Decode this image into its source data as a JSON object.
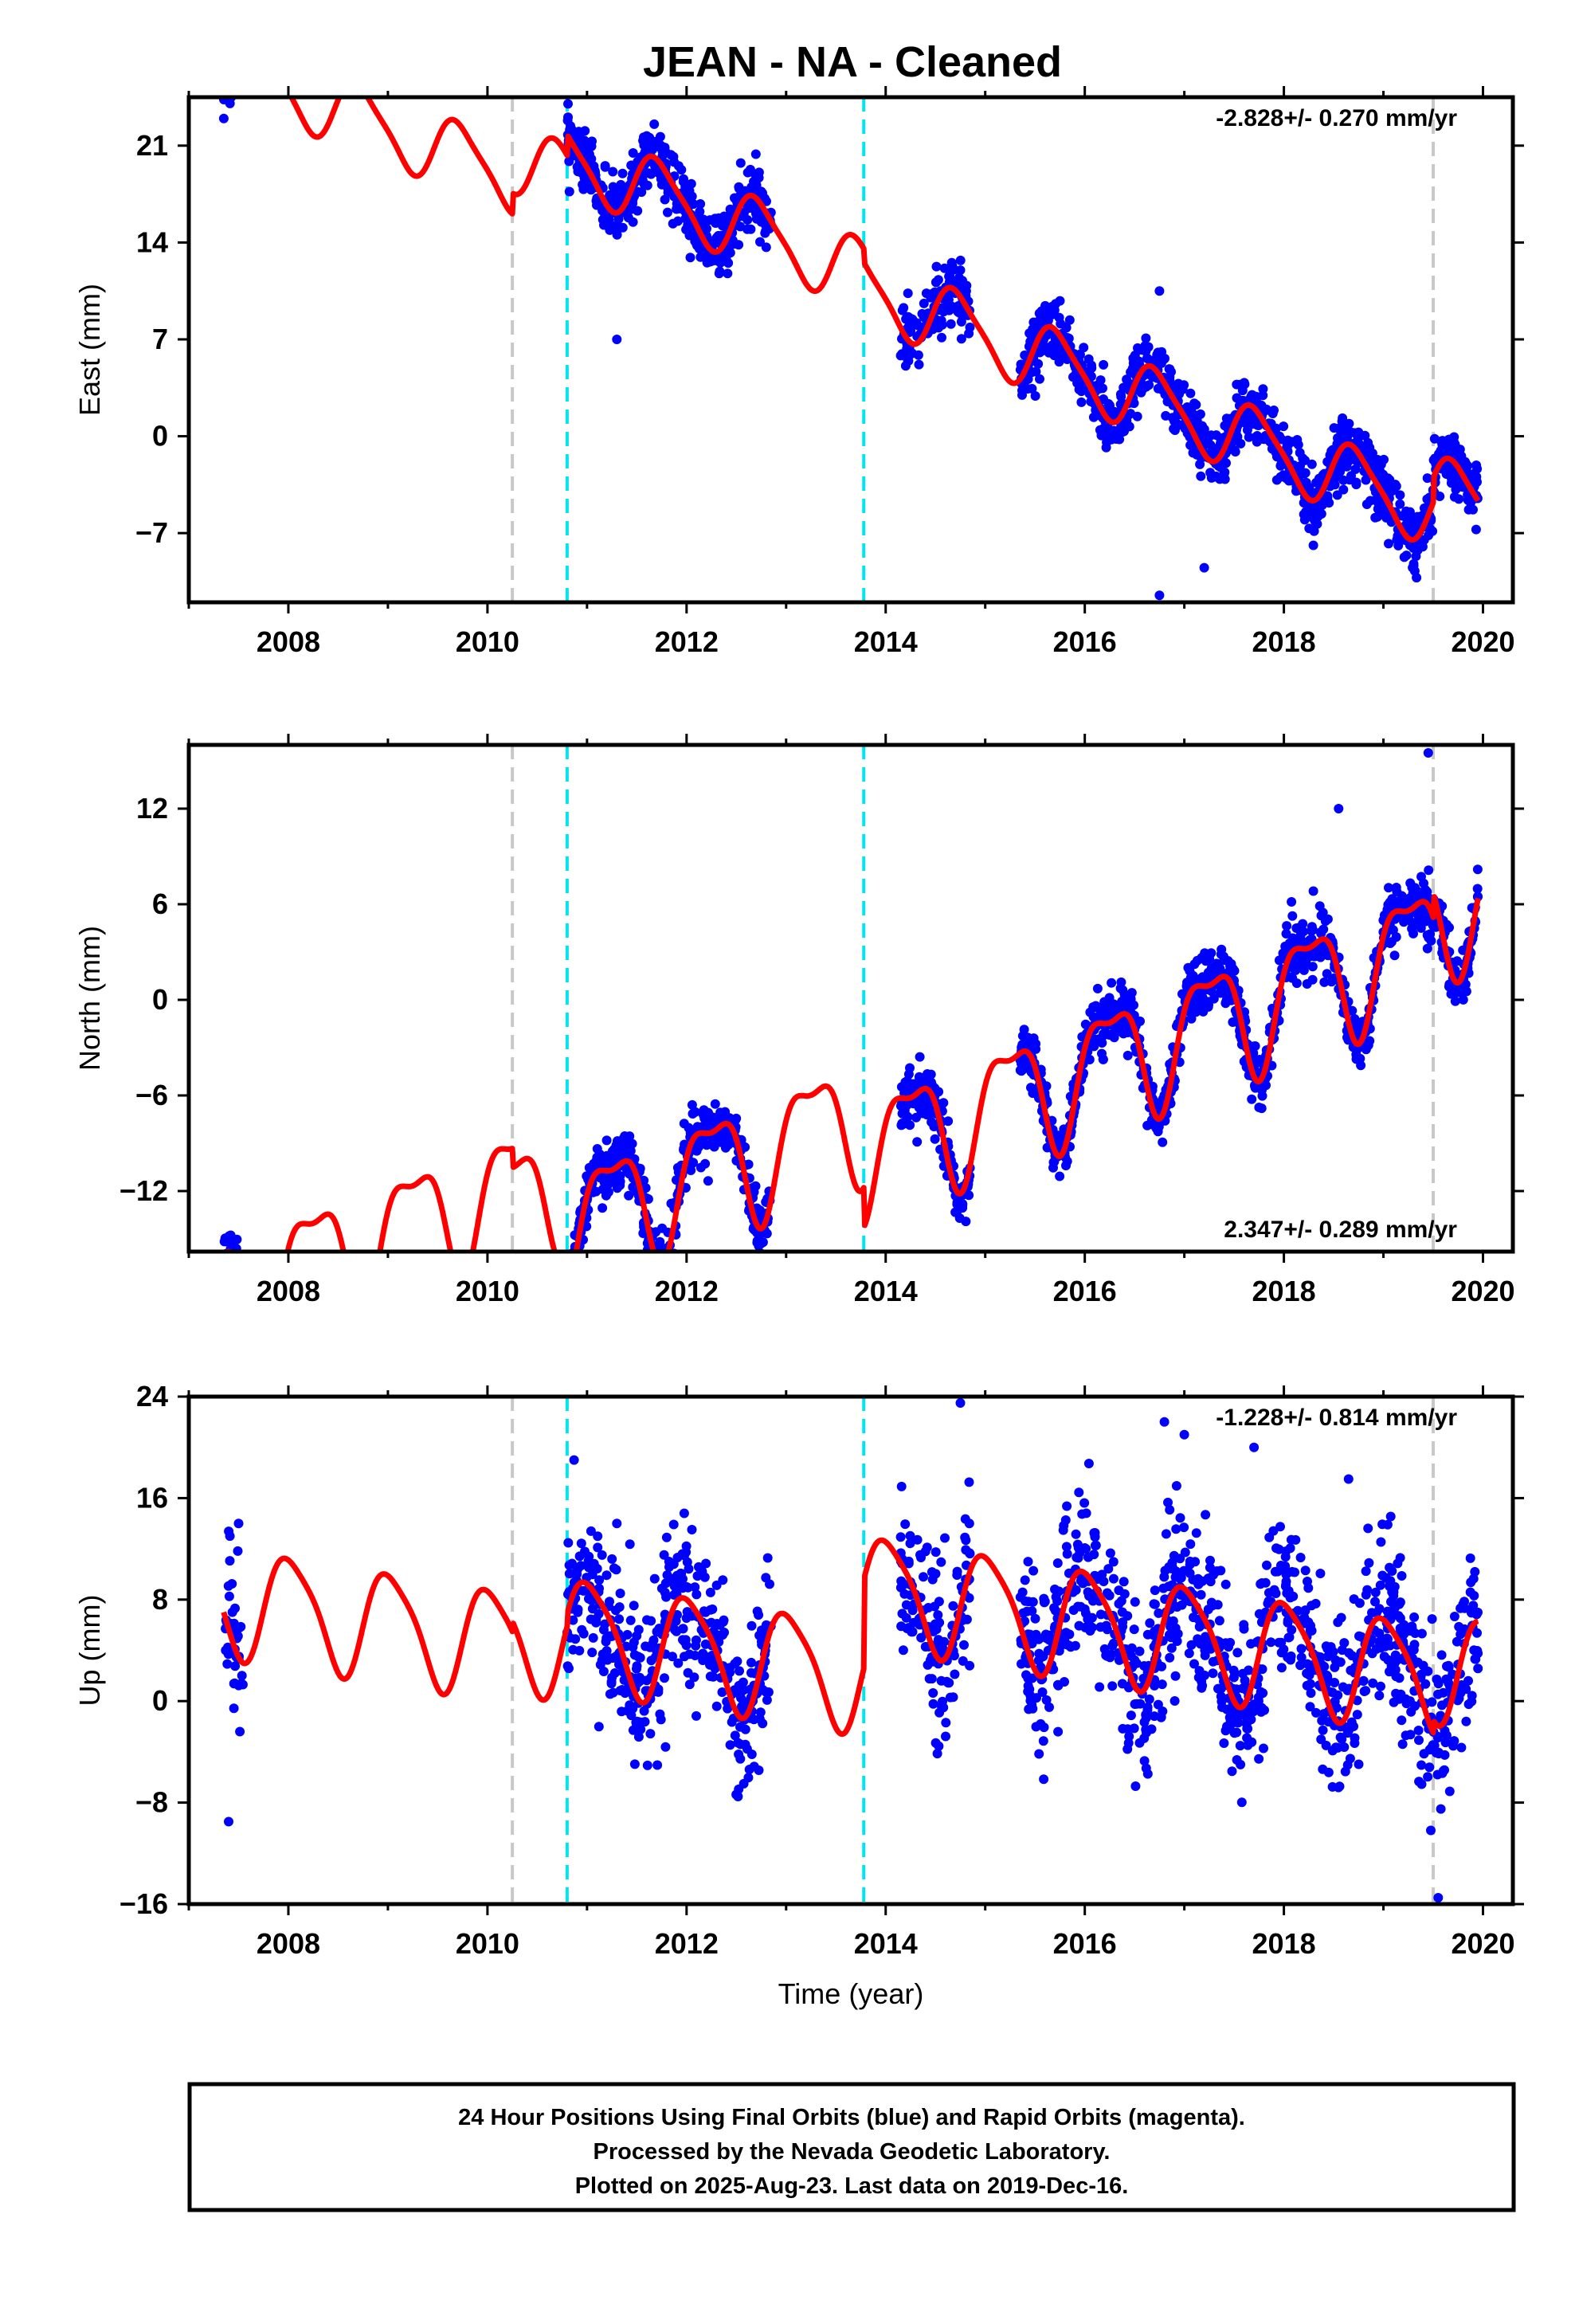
{
  "title": "JEAN  - NA - Cleaned",
  "caption": {
    "line1": "24 Hour Positions Using Final Orbits (blue) and Rapid Orbits (magenta).",
    "line2": "Processed by the Nevada Geodetic Laboratory.",
    "line3": "Plotted on 2025-Aug-23. Last data on 2019-Dec-16."
  },
  "colors": {
    "data_points": "#0000ff",
    "model_fit": "#ff0000",
    "equipment_change": "#00e5ee",
    "other_offset": "#c8c8c8",
    "frame": "#000000"
  },
  "chart_data": [
    {
      "id": "east",
      "type": "scatter",
      "ylabel": "East (mm)",
      "xlabel": "",
      "xlim": [
        2007.0,
        2020.3
      ],
      "ylim": [
        -12.0,
        24.5
      ],
      "xticks": [
        2008,
        2010,
        2012,
        2014,
        2016,
        2018,
        2020
      ],
      "yticks": [
        -7,
        0,
        7,
        14,
        21
      ],
      "rate_text": "-2.828+/- 0.270 mm/yr",
      "rate_position": "top-right",
      "offsets_cyan": [
        2010.8,
        2013.78
      ],
      "offsets_gray": [
        2010.25,
        2019.5
      ],
      "model": {
        "slope": -2.828,
        "t0": 2013.5,
        "c0": 9.5,
        "ann_amp": 2.4,
        "ann_phase_deg": 190,
        "semi_amp": 0.5,
        "semi_phase_deg": 30,
        "steps": [
          {
            "t": 2010.25,
            "dy": 1.5
          },
          {
            "t": 2010.8,
            "dy": 1.5
          },
          {
            "t": 2013.78,
            "dy": -1.0
          },
          {
            "t": 2019.5,
            "dy": 1.8
          }
        ]
      },
      "segments": [
        [
          2007.35,
          2007.55
        ],
        [
          2010.8,
          2012.85
        ],
        [
          2014.15,
          2014.85
        ],
        [
          2015.35,
          2019.95
        ]
      ],
      "scatter_sd": 1.1,
      "n_points": 1750,
      "outliers": [
        [
          2016.75,
          10.5
        ],
        [
          2016.75,
          -11.5
        ],
        [
          2014.75,
          12.0
        ],
        [
          2011.3,
          7.0
        ],
        [
          2017.2,
          -9.5
        ]
      ]
    },
    {
      "id": "north",
      "type": "scatter",
      "ylabel": "North (mm)",
      "xlabel": "",
      "xlim": [
        2007.0,
        2020.3
      ],
      "ylim": [
        -15.8,
        16.0
      ],
      "xticks": [
        2008,
        2010,
        2012,
        2014,
        2016,
        2018,
        2020
      ],
      "yticks": [
        -12,
        -6,
        0,
        6,
        12
      ],
      "rate_text": "2.347+/- 0.289 mm/yr",
      "rate_position": "bottom-right",
      "offsets_cyan": [
        2010.8,
        2013.78
      ],
      "offsets_gray": [
        2010.25,
        2019.5
      ],
      "model": {
        "slope": 2.347,
        "t0": 2013.5,
        "c0": -4.0,
        "ann_amp": 3.6,
        "ann_phase_deg": 0,
        "semi_amp": 1.3,
        "semi_phase_deg": 90,
        "steps": [
          {
            "t": 2010.25,
            "dy": -1.2
          },
          {
            "t": 2010.8,
            "dy": -2.5
          },
          {
            "t": 2013.78,
            "dy": -2.5
          },
          {
            "t": 2019.5,
            "dy": 1.5
          }
        ]
      },
      "segments": [
        [
          2007.35,
          2007.55
        ],
        [
          2010.8,
          2012.85
        ],
        [
          2014.15,
          2014.85
        ],
        [
          2015.35,
          2019.95
        ]
      ],
      "scatter_sd": 0.9,
      "n_points": 1750,
      "outliers": [
        [
          2019.45,
          15.5
        ],
        [
          2018.55,
          12.0
        ]
      ]
    },
    {
      "id": "up",
      "type": "scatter",
      "ylabel": "Up (mm)",
      "xlabel": "Time (year)",
      "xlim": [
        2007.0,
        2020.3
      ],
      "ylim": [
        -16.0,
        24.0
      ],
      "xticks": [
        2008,
        2010,
        2012,
        2014,
        2016,
        2018,
        2020
      ],
      "yticks": [
        -16,
        -8,
        0,
        8,
        16,
        24
      ],
      "rate_text": "-1.228+/- 0.814 mm/yr",
      "rate_position": "top-right",
      "offsets_cyan": [
        2010.8,
        2013.78
      ],
      "offsets_gray": [
        2010.25,
        2019.5
      ],
      "model": {
        "slope": -1.228,
        "t0": 2013.5,
        "c0": 0.5,
        "ann_amp": 4.2,
        "ann_phase_deg": 80,
        "semi_amp": 0.8,
        "semi_phase_deg": 200,
        "steps": [
          {
            "t": 2010.25,
            "dy": 0.8
          },
          {
            "t": 2010.8,
            "dy": 1.0
          },
          {
            "t": 2013.78,
            "dy": 7.0
          },
          {
            "t": 2019.5,
            "dy": 1.0
          }
        ]
      },
      "segments": [
        [
          2007.35,
          2007.55
        ],
        [
          2010.8,
          2012.85
        ],
        [
          2014.15,
          2014.85
        ],
        [
          2015.35,
          2019.95
        ]
      ],
      "scatter_sd": 3.2,
      "n_points": 1550,
      "outliers": [
        [
          2014.75,
          23.5
        ],
        [
          2016.8,
          22.0
        ],
        [
          2017.0,
          21.0
        ],
        [
          2017.7,
          20.0
        ],
        [
          2010.87,
          19.0
        ],
        [
          2011.3,
          14.0
        ],
        [
          2007.5,
          14.0
        ],
        [
          2018.65,
          17.5
        ],
        [
          2019.55,
          -15.5
        ],
        [
          2007.4,
          -9.5
        ]
      ]
    }
  ]
}
